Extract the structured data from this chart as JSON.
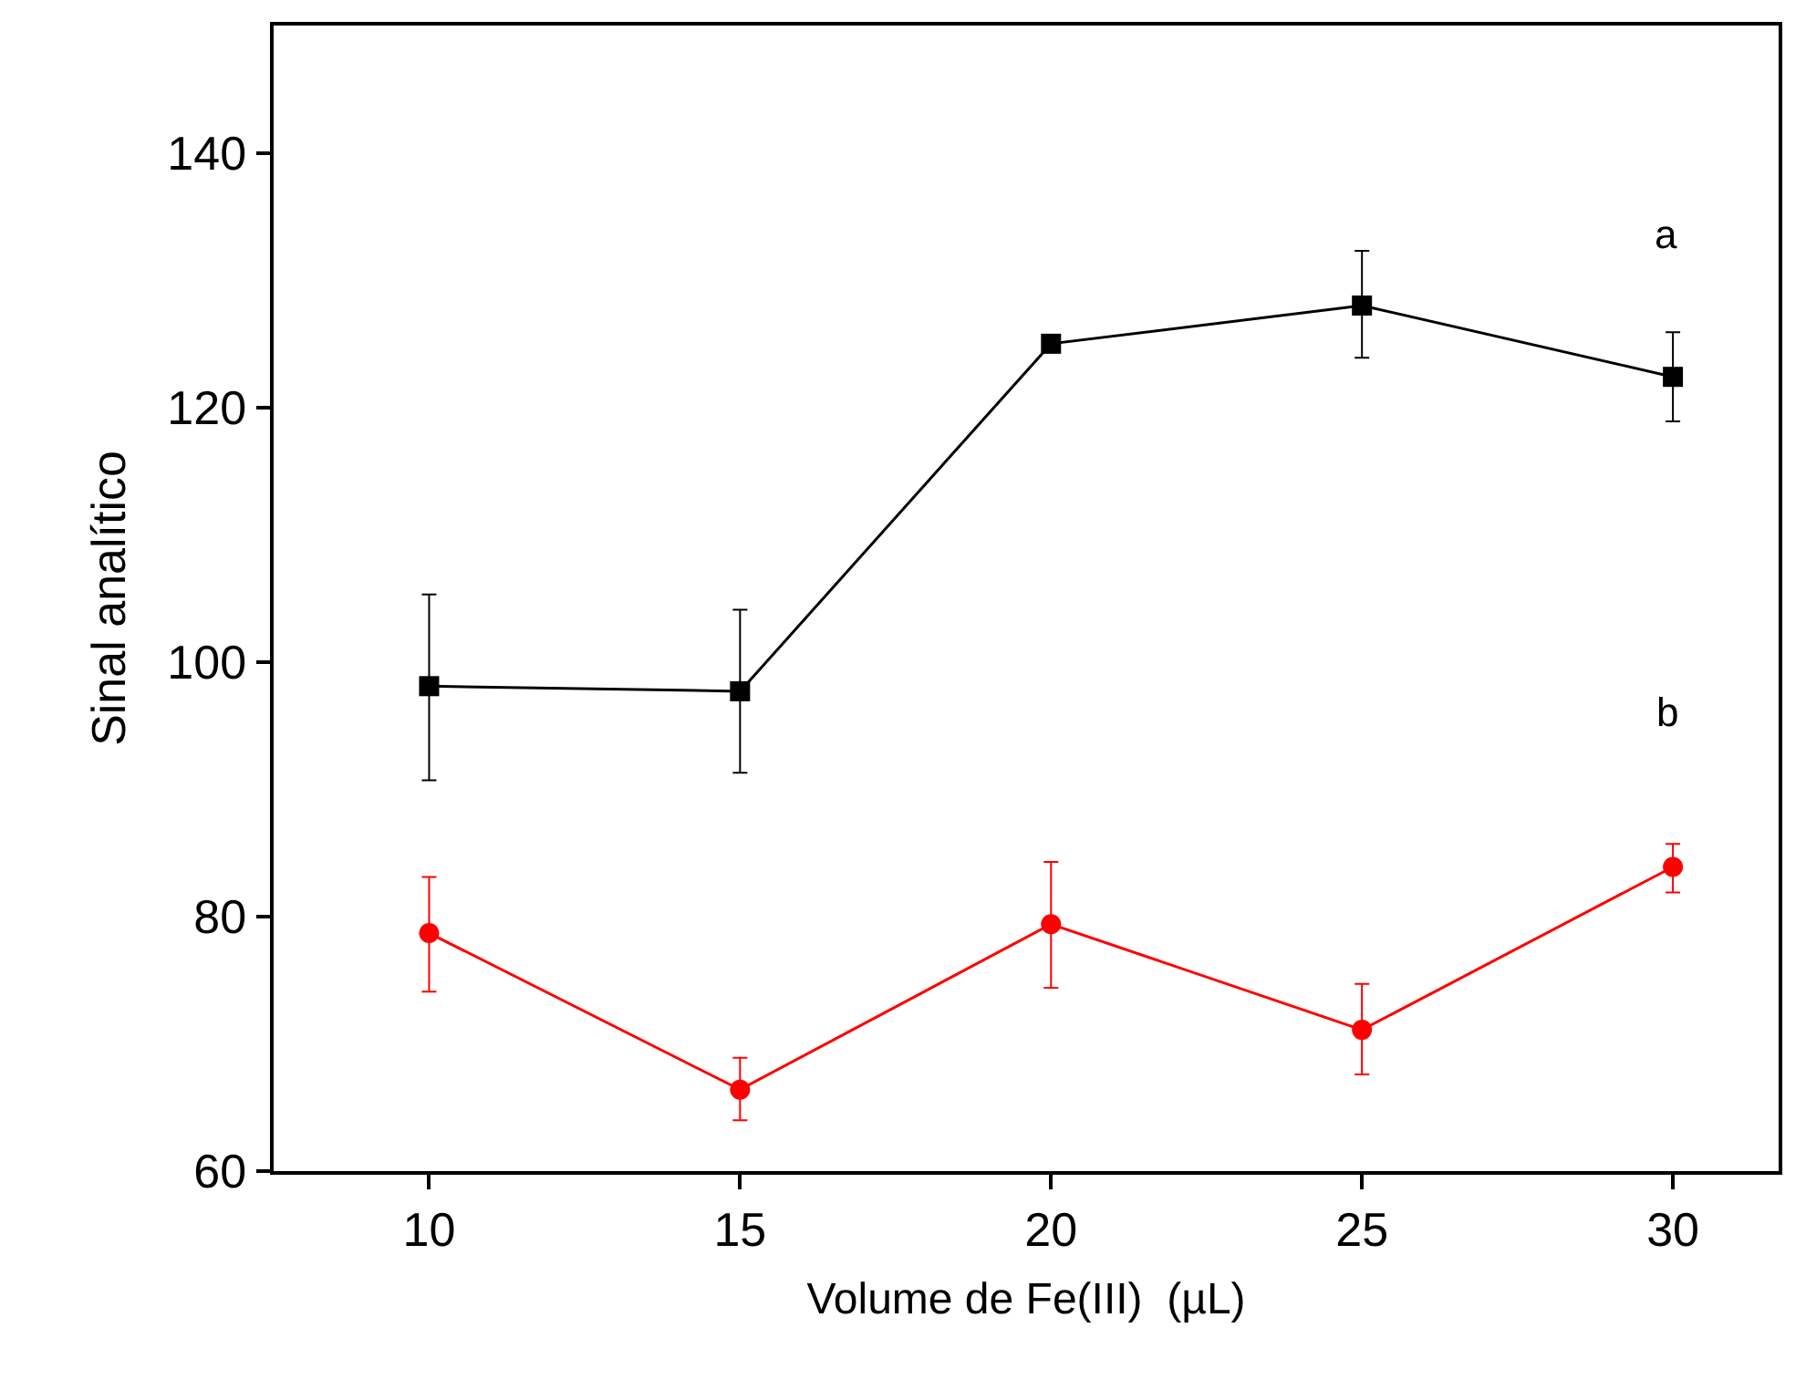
{
  "chart_data": {
    "type": "line",
    "xlabel": "Volume de Fe(III)  (µL)",
    "ylabel": "Sinal analítico",
    "x": [
      10,
      15,
      20,
      25,
      30
    ],
    "series": [
      {
        "color": "#000000",
        "marker": "square",
        "values": [
          98.1,
          97.7,
          125.0,
          128.0,
          122.4
        ],
        "errors": [
          [
            90.7,
            105.3
          ],
          [
            91.3,
            104.1
          ],
          null,
          [
            123.9,
            132.3
          ],
          [
            118.9,
            125.9
          ]
        ]
      },
      {
        "color": "#ff0000",
        "marker": "circle",
        "values": [
          78.7,
          66.4,
          79.4,
          71.1,
          83.9
        ],
        "errors": [
          [
            74.1,
            83.1
          ],
          [
            64.0,
            68.9
          ],
          [
            74.4,
            84.3
          ],
          [
            67.6,
            74.7
          ],
          [
            81.9,
            85.7
          ]
        ]
      }
    ],
    "annotations": [
      "a",
      "b"
    ],
    "xlim": [
      7.5,
      31.7
    ],
    "ylim": [
      60,
      150
    ],
    "xticks": [
      10,
      15,
      20,
      25,
      30
    ],
    "yticks": [
      60,
      80,
      100,
      120,
      140
    ],
    "legend": false,
    "line_style": "solid"
  }
}
